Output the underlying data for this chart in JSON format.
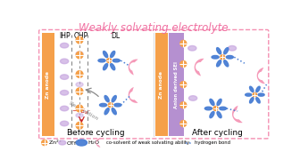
{
  "title": "Weakly solvating electrolyte",
  "title_color": "#F06EA0",
  "title_fontsize": 8.5,
  "bg_color": "#FFFFFF",
  "panel_border_color": "#F48FB1",
  "zn_anode_color": "#F5A04A",
  "zn_anode_alpha": 1.0,
  "sei_color": "#A87DC8",
  "sei_alpha": 0.85,
  "otf_color": "#C8A8E0",
  "otf_alpha": 0.75,
  "zn2_color": "#F5A04A",
  "h2o_color": "#4A7FD4",
  "cosolvent_color": "#F48FB1",
  "dashed_color": "#4A7FD4",
  "gray_color": "#888888",
  "label_before": "Before cycling",
  "label_after": "After cycling",
  "red_color": "#CC2222"
}
